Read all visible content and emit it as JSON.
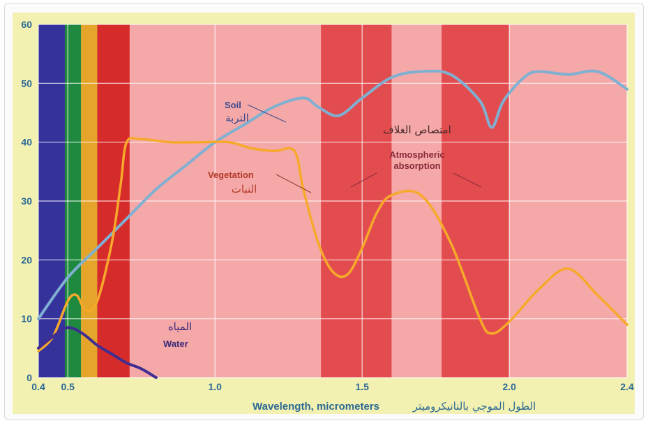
{
  "chart_data": {
    "type": "line",
    "xlim": [
      0.4,
      2.4
    ],
    "ylim": [
      0,
      60
    ],
    "x_ticks": [
      "0.4",
      "0.5",
      "1.0",
      "1.5",
      "2.0",
      "2.4"
    ],
    "y_ticks": [
      "0",
      "10",
      "20",
      "30",
      "40",
      "50",
      "60"
    ],
    "xlabel": "Wavelength, micrometers",
    "xlabel_ar": "الطول الموجي بالنانيكروميتر",
    "grid": true,
    "colors": {
      "plot_bg": "#f5a8a8",
      "absorption_band": "#e34c4e",
      "grid": "#ffffff",
      "axis_text": "#2c6a94",
      "soil": "#7fb0d2",
      "vegetation": "#f6a92a",
      "water": "#3f2d92",
      "outer_bg": "#f2f1b2"
    },
    "spectrum_bands": [
      {
        "name": "violet-blue",
        "x0": 0.4,
        "x1": 0.49,
        "color": "#36329c"
      },
      {
        "name": "green",
        "x0": 0.49,
        "x1": 0.545,
        "color": "#1f8a3f"
      },
      {
        "name": "yellow-orange",
        "x0": 0.545,
        "x1": 0.6,
        "color": "#e5a52a"
      },
      {
        "name": "red",
        "x0": 0.6,
        "x1": 0.71,
        "color": "#d62b2b"
      }
    ],
    "absorption_bands": [
      {
        "x0": 1.36,
        "x1": 1.6
      },
      {
        "x0": 1.77,
        "x1": 2.0
      }
    ],
    "series": [
      {
        "name": "Soil",
        "name_ar": "التربة",
        "x": [
          0.4,
          0.5,
          0.6,
          0.7,
          0.8,
          0.9,
          1.0,
          1.1,
          1.2,
          1.3,
          1.35,
          1.42,
          1.5,
          1.6,
          1.7,
          1.8,
          1.9,
          1.94,
          1.98,
          2.05,
          2.1,
          2.2,
          2.3,
          2.4
        ],
        "y": [
          10,
          17,
          22,
          27,
          32,
          36,
          40,
          43,
          46,
          47.5,
          46,
          44.5,
          47.5,
          51,
          52,
          51.5,
          47,
          42.5,
          47,
          51,
          52,
          51.5,
          52,
          49
        ]
      },
      {
        "name": "Vegetation",
        "name_ar": "النبات",
        "x": [
          0.4,
          0.45,
          0.5,
          0.53,
          0.56,
          0.6,
          0.65,
          0.68,
          0.7,
          0.75,
          0.85,
          0.95,
          1.05,
          1.12,
          1.2,
          1.27,
          1.3,
          1.35,
          1.4,
          1.45,
          1.5,
          1.55,
          1.6,
          1.7,
          1.8,
          1.9,
          1.94,
          2.0,
          2.1,
          2.2,
          2.3,
          2.4
        ],
        "y": [
          4.5,
          7,
          13,
          14,
          11.5,
          13,
          23,
          33,
          40,
          40.5,
          40,
          40,
          40,
          39,
          38.5,
          38.5,
          32,
          23,
          18,
          17.5,
          22,
          28,
          31,
          31,
          23,
          10,
          7.5,
          9.5,
          15,
          18.5,
          14,
          9
        ]
      },
      {
        "name": "Water",
        "name_ar": "المياه",
        "x": [
          0.4,
          0.45,
          0.5,
          0.55,
          0.6,
          0.65,
          0.7,
          0.75,
          0.8
        ],
        "y": [
          5,
          7,
          8.5,
          7.5,
          5.5,
          4,
          2.5,
          1.5,
          0
        ]
      }
    ],
    "annotations": {
      "soil": "Soil",
      "soil_ar": "التربة",
      "vegetation": "Vegetation",
      "vegetation_ar": "النبات",
      "water": "Water",
      "water_ar": "المياه",
      "absorption_line1": "Atmospheric",
      "absorption_line2": "absorption",
      "absorption_ar": "امتصاص الغلاف"
    }
  }
}
